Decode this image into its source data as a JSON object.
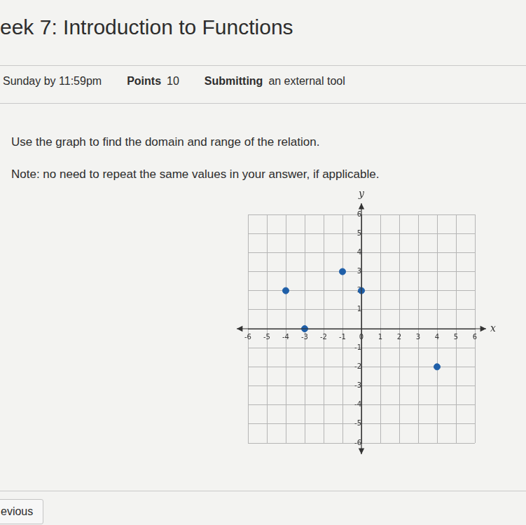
{
  "page": {
    "title": "eek 7: Introduction to Functions",
    "due": "Sunday by 11:59pm",
    "points_label": "Points",
    "points": 10,
    "submitting_label": "Submitting",
    "submitting": "an external tool",
    "question": "Use the graph to find the domain and range of the relation.",
    "note": "Note: no need to repeat the same values in your answer, if applicable.",
    "button": "evious"
  },
  "chart_data": {
    "type": "scatter",
    "x_label": "x",
    "y_label": "y",
    "x": [
      -4,
      -3,
      -1,
      0,
      4
    ],
    "values": [
      2,
      0,
      3,
      2,
      -2
    ],
    "color": "#1f5fa8",
    "marker": "circle",
    "xlim": [
      -6,
      6
    ],
    "ylim": [
      -6,
      6
    ],
    "xticks": [
      -6,
      -5,
      -4,
      -3,
      -2,
      -1,
      0,
      1,
      2,
      3,
      4,
      5,
      6
    ],
    "yticks": [
      -6,
      -5,
      -4,
      -3,
      -2,
      -1,
      1,
      2,
      3,
      4,
      5,
      6
    ],
    "grid": true
  }
}
